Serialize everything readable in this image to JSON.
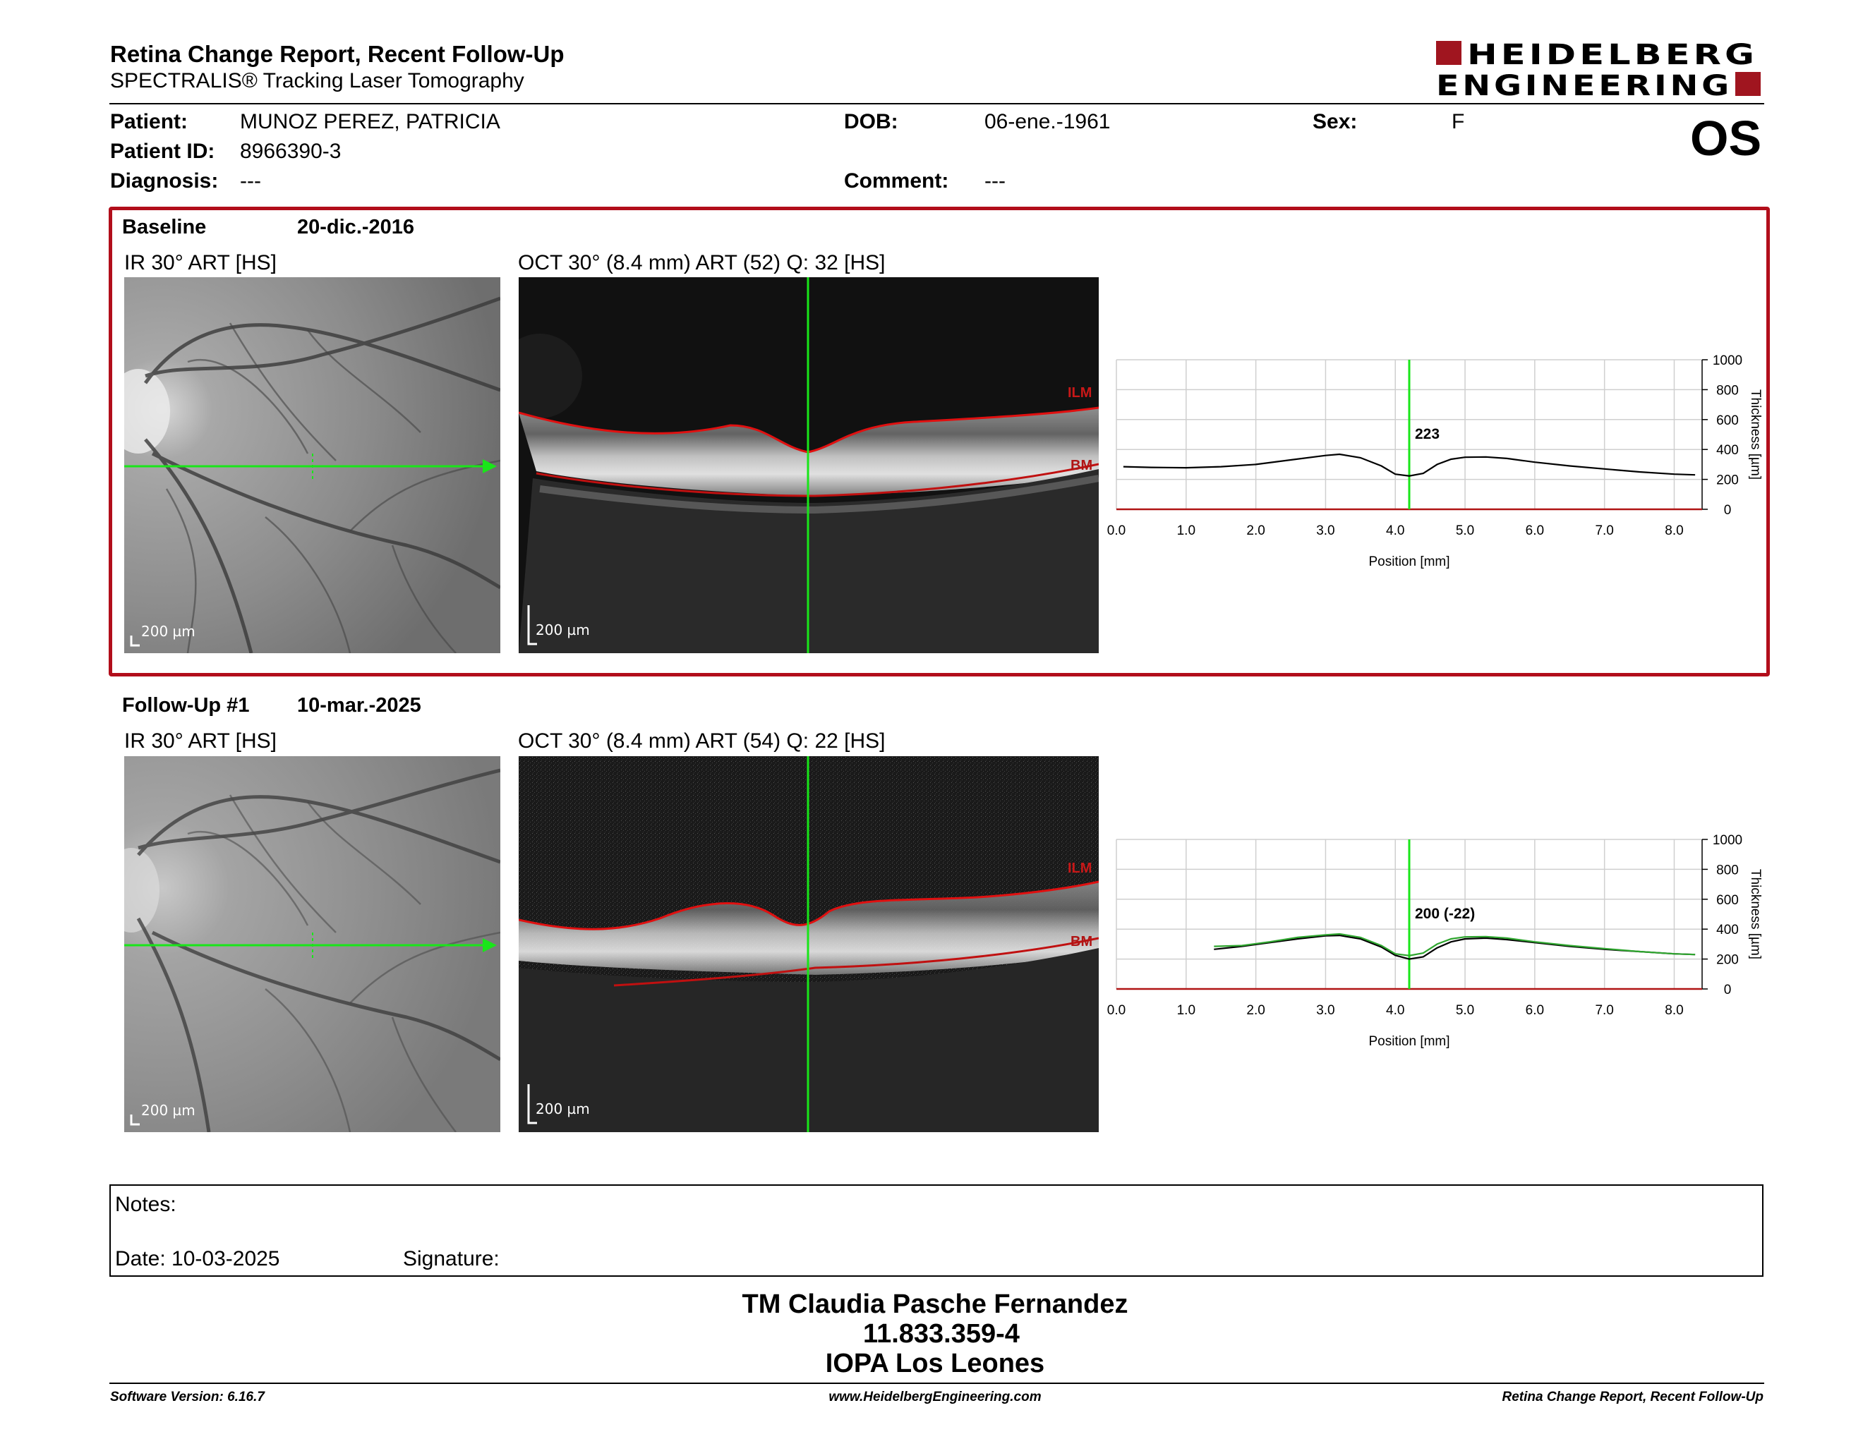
{
  "header": {
    "title": "Retina Change Report, Recent Follow-Up",
    "subtitle": "SPECTRALIS® Tracking Laser Tomography",
    "logo_line1": "HEIDELBERG",
    "logo_line2": "ENGINEERING",
    "eye": "OS"
  },
  "patient": {
    "patient_label": "Patient:",
    "patient_value": "MUNOZ PEREZ, PATRICIA",
    "id_label": "Patient ID:",
    "id_value": "8966390-3",
    "diagnosis_label": "Diagnosis:",
    "diagnosis_value": "---",
    "dob_label": "DOB:",
    "dob_value": "06-ene.-1961",
    "comment_label": "Comment:",
    "comment_value": "---",
    "sex_label": "Sex:",
    "sex_value": "F"
  },
  "baseline": {
    "label": "Baseline",
    "date": "20-dic.-2016",
    "ir_label": "IR 30° ART [HS]",
    "oct_label": "OCT 30° (8.4 mm) ART (52) Q: 32 [HS]",
    "scale": "200 µm",
    "ilm": "ILM",
    "bm": "BM"
  },
  "followup": {
    "label": "Follow-Up #1",
    "date": "10-mar.-2025",
    "ir_label": "IR 30° ART [HS]",
    "oct_label": "OCT 30° (8.4 mm) ART (54) Q: 22 [HS]",
    "scale": "200 µm",
    "ilm": "ILM",
    "bm": "BM"
  },
  "chart_data": [
    {
      "type": "line",
      "xlabel": "Position [mm]",
      "ylabel": "Thickness [µm]",
      "xlim": [
        0,
        8.4
      ],
      "ylim": [
        0,
        1000
      ],
      "x_ticks": [
        "0.0",
        "1.0",
        "2.0",
        "3.0",
        "4.0",
        "5.0",
        "6.0",
        "7.0",
        "8.0"
      ],
      "y_ticks": [
        "0",
        "200",
        "400",
        "600",
        "800",
        "1000"
      ],
      "marker_x": 4.2,
      "marker_label": "223",
      "series": [
        {
          "x": [
            0.1,
            0.5,
            1.0,
            1.5,
            2.0,
            2.5,
            3.0,
            3.2,
            3.5,
            3.8,
            4.0,
            4.2,
            4.4,
            4.6,
            4.8,
            5.0,
            5.3,
            5.6,
            6.0,
            6.5,
            7.0,
            7.5,
            8.0,
            8.3
          ],
          "y": [
            285,
            280,
            278,
            285,
            300,
            330,
            360,
            368,
            345,
            290,
            235,
            223,
            240,
            300,
            335,
            348,
            350,
            340,
            315,
            290,
            270,
            250,
            235,
            230
          ],
          "color": "#000000"
        }
      ]
    },
    {
      "type": "line",
      "xlabel": "Position [mm]",
      "ylabel": "Thickness [µm]",
      "xlim": [
        0,
        8.4
      ],
      "ylim": [
        0,
        1000
      ],
      "x_ticks": [
        "0.0",
        "1.0",
        "2.0",
        "3.0",
        "4.0",
        "5.0",
        "6.0",
        "7.0",
        "8.0"
      ],
      "y_ticks": [
        "0",
        "200",
        "400",
        "600",
        "800",
        "1000"
      ],
      "marker_x": 4.2,
      "marker_label": "200 (-22)",
      "series": [
        {
          "x": [
            1.4,
            1.8,
            2.2,
            2.6,
            3.0,
            3.2,
            3.5,
            3.8,
            4.0,
            4.2,
            4.4,
            4.6,
            4.8,
            5.0,
            5.3,
            5.6,
            6.0,
            6.5,
            7.0,
            7.5,
            8.0,
            8.3
          ],
          "y": [
            265,
            285,
            310,
            335,
            355,
            358,
            335,
            280,
            225,
            200,
            215,
            275,
            315,
            335,
            340,
            330,
            310,
            285,
            265,
            250,
            235,
            230
          ],
          "color": "#000000"
        },
        {
          "x": [
            1.4,
            1.8,
            2.2,
            2.6,
            3.0,
            3.2,
            3.5,
            3.8,
            4.0,
            4.2,
            4.4,
            4.6,
            4.8,
            5.0,
            5.3,
            5.6,
            6.0,
            6.5,
            7.0,
            7.5,
            8.0,
            8.3
          ],
          "y": [
            285,
            290,
            315,
            345,
            362,
            368,
            345,
            290,
            235,
            223,
            240,
            300,
            335,
            348,
            350,
            340,
            315,
            290,
            270,
            250,
            235,
            230
          ],
          "color": "#2fa62f"
        }
      ]
    }
  ],
  "notes": {
    "notes_label": "Notes:",
    "date_label": "Date: 10-03-2025",
    "signature_label": "Signature:"
  },
  "footer": {
    "name": "TM Claudia Pasche Fernandez",
    "rut": "11.833.359-4",
    "institution": "IOPA Los Leones",
    "software": "Software Version: 6.16.7",
    "website": "www.HeidelbergEngineering.com",
    "report": "Retina Change Report, Recent Follow-Up"
  }
}
